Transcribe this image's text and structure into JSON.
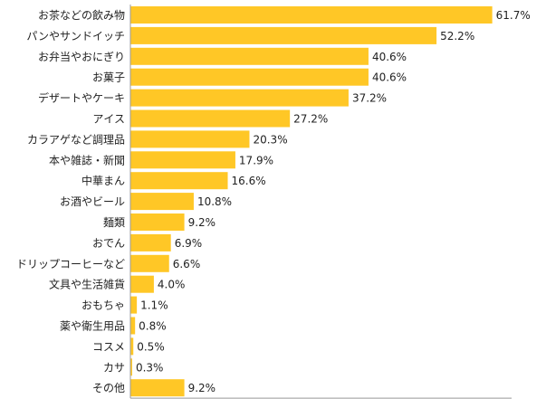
{
  "chart_data": {
    "type": "bar",
    "orientation": "horizontal",
    "categories": [
      "お茶などの飲み物",
      "パンやサンドイッチ",
      "お弁当やおにぎり",
      "お菓子",
      "デザートやケーキ",
      "アイス",
      "カラアゲなど調理品",
      "本や雑誌・新聞",
      "中華まん",
      "お酒やビール",
      "麺類",
      "おでん",
      "ドリップコーヒーなど",
      "文具や生活雑貨",
      "おもちゃ",
      "薬や衛生用品",
      "コスメ",
      "カサ",
      "その他"
    ],
    "values": [
      61.7,
      52.2,
      40.6,
      40.6,
      37.2,
      27.2,
      20.3,
      17.9,
      16.6,
      10.8,
      9.2,
      6.9,
      6.6,
      4.0,
      1.1,
      0.8,
      0.5,
      0.3,
      9.2
    ],
    "value_labels": [
      "61.7%",
      "52.2%",
      "40.6%",
      "40.6%",
      "37.2%",
      "27.2%",
      "20.3%",
      "17.9%",
      "16.6%",
      "10.8%",
      "9.2%",
      "6.9%",
      "6.6%",
      "4.0%",
      "1.1%",
      "0.8%",
      "0.5%",
      "0.3%",
      "9.2%"
    ],
    "xlim": [
      0,
      65
    ],
    "grid": false,
    "legend": "none",
    "bar_color": "#FFC726",
    "axis_color": "#999999"
  }
}
